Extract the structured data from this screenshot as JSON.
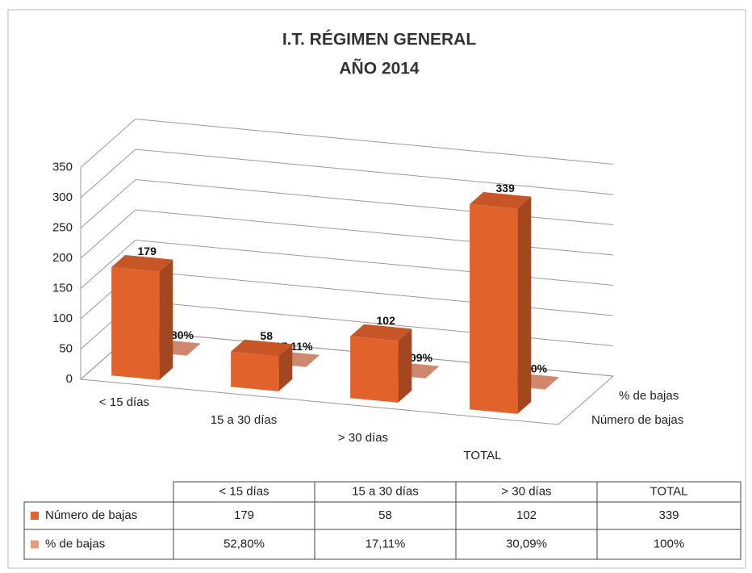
{
  "chart_data": {
    "type": "bar3d",
    "title": [
      "I.T. RÉGIMEN GENERAL",
      "AÑO 2014"
    ],
    "categories": [
      "< 15 días",
      "15 a 30 días",
      "> 30 días",
      "TOTAL"
    ],
    "series": [
      {
        "name": "Número de bajas",
        "color": "#e2622c",
        "values": [
          179,
          58,
          102,
          339
        ]
      },
      {
        "name": "% de bajas",
        "color": "#e99b7d",
        "values": [
          0.528,
          0.1711,
          0.3009,
          1
        ],
        "value_labels": [
          "52,80%",
          "17,11%",
          "30,09%",
          "100%"
        ]
      }
    ],
    "ylim": [
      0,
      350
    ],
    "yticks": [
      0,
      50,
      100,
      150,
      200,
      250,
      300,
      350
    ],
    "grid": true,
    "data_table": true
  }
}
